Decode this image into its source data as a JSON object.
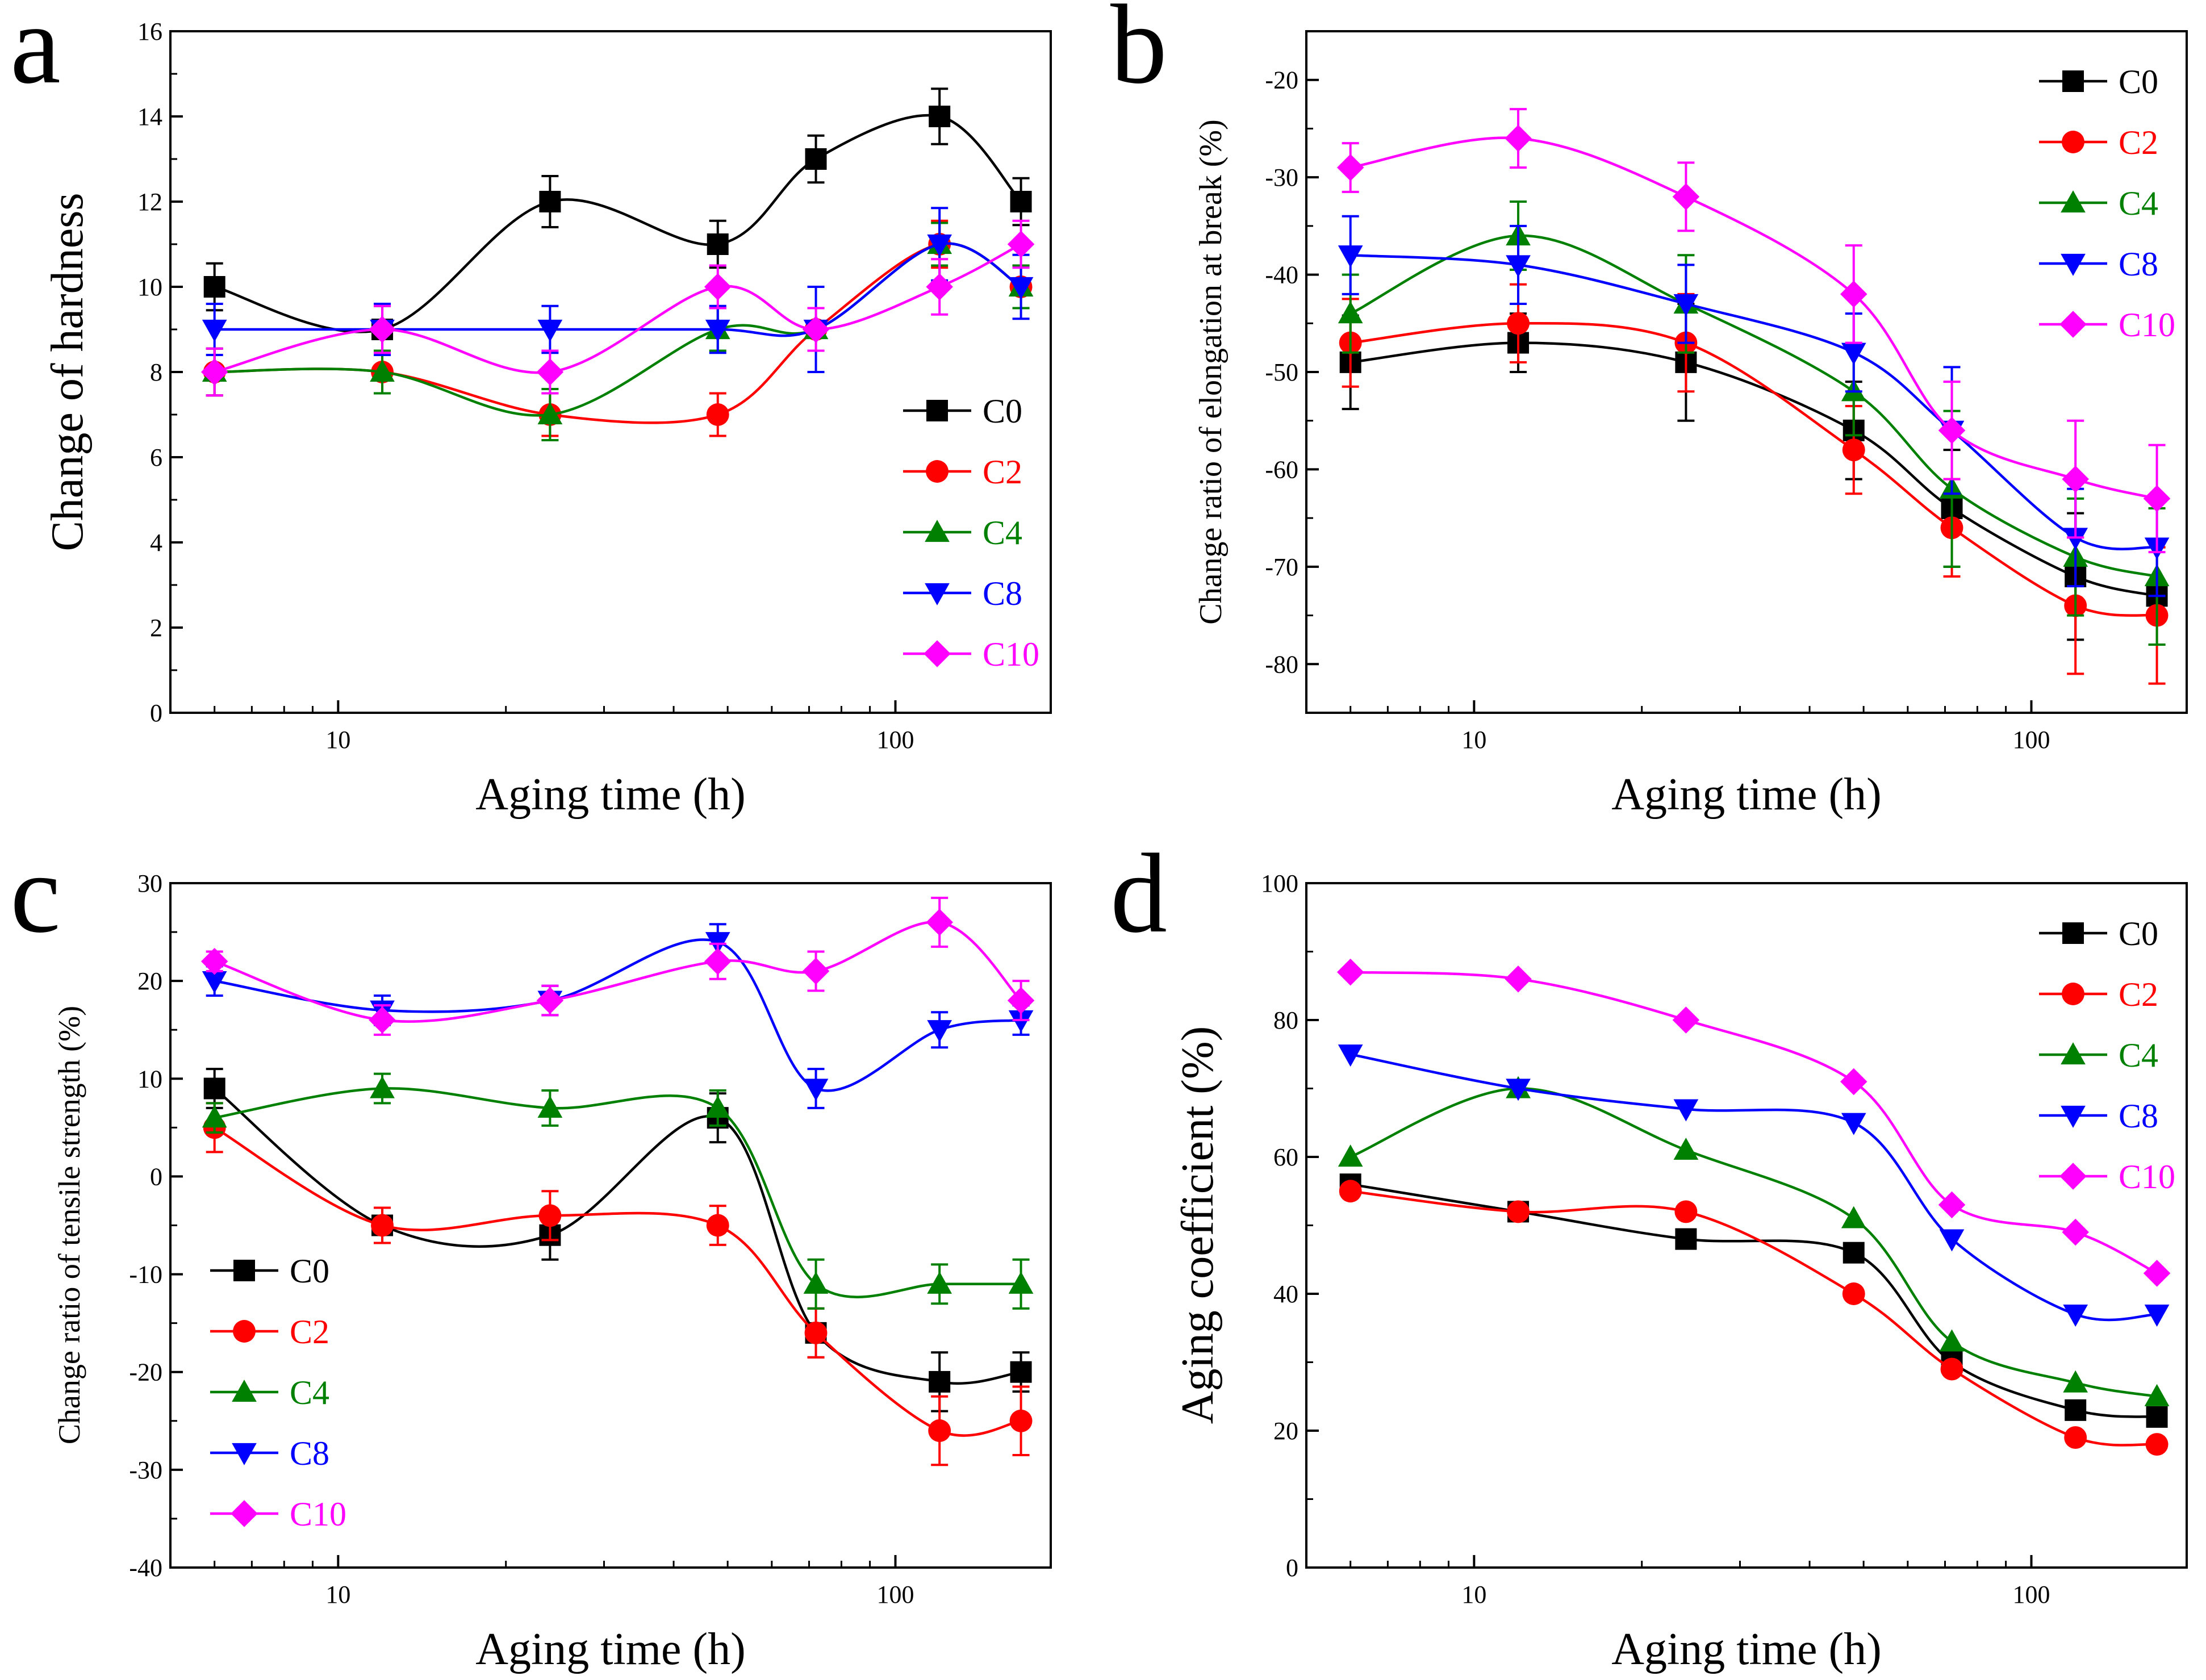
{
  "figure": {
    "x_values": [
      6,
      12,
      24,
      48,
      72,
      120,
      168
    ]
  },
  "series_style": {
    "C0": {
      "color": "#000000",
      "marker": "square"
    },
    "C2": {
      "color": "#ff0000",
      "marker": "circle"
    },
    "C4": {
      "color": "#008000",
      "marker": "triangle-up"
    },
    "C8": {
      "color": "#0000ff",
      "marker": "triangle-down"
    },
    "C10": {
      "color": "#ff00ff",
      "marker": "diamond"
    }
  },
  "chart_data": [
    {
      "panel": "a",
      "type": "line",
      "xscale": "log",
      "xlim": [
        5,
        190
      ],
      "ylim": [
        0,
        16
      ],
      "xticks": [
        10,
        100
      ],
      "xtick_labels": [
        "10",
        "100"
      ],
      "yticks": [
        0,
        2,
        4,
        6,
        8,
        10,
        12,
        14,
        16
      ],
      "ytick_labels": [
        "0",
        "2",
        "4",
        "6",
        "8",
        "10",
        "12",
        "14",
        "16"
      ],
      "xlabel": "Aging time (h)",
      "ylabel": "Change of hardness",
      "legend_position": "lower-right",
      "series": [
        {
          "name": "C0",
          "values": [
            10,
            9,
            12,
            11,
            13,
            14,
            12
          ],
          "errors": [
            0.55,
            0.55,
            0.6,
            0.55,
            0.55,
            0.65,
            0.55
          ]
        },
        {
          "name": "C2",
          "values": [
            8,
            8,
            7,
            7,
            9,
            11,
            10
          ],
          "errors": [
            0.55,
            0.5,
            0.5,
            0.5,
            0.5,
            0.55,
            0.5
          ]
        },
        {
          "name": "C4",
          "values": [
            8,
            8,
            7,
            9,
            9,
            11,
            10
          ],
          "errors": [
            0.55,
            0.5,
            0.6,
            0.5,
            0.5,
            0.5,
            0.5
          ]
        },
        {
          "name": "C8",
          "values": [
            9,
            9,
            9,
            9,
            9,
            11,
            10
          ],
          "errors": [
            0.6,
            0.6,
            0.55,
            0.55,
            1.0,
            0.85,
            0.75
          ]
        },
        {
          "name": "C10",
          "values": [
            8,
            9,
            8,
            10,
            9,
            10,
            11
          ],
          "errors": [
            0.55,
            0.55,
            0.5,
            0.5,
            0.5,
            0.65,
            0.55
          ]
        }
      ]
    },
    {
      "panel": "b",
      "type": "line",
      "xscale": "log",
      "xlim": [
        5,
        190
      ],
      "ylim": [
        -85,
        -15
      ],
      "xticks": [
        10,
        100
      ],
      "xtick_labels": [
        "10",
        "100"
      ],
      "yticks": [
        -80,
        -70,
        -60,
        -50,
        -40,
        -30,
        -20
      ],
      "ytick_labels": [
        "-80",
        "-70",
        "-60",
        "-50",
        "-40",
        "-30",
        "-20"
      ],
      "xlabel": "Aging time (h)",
      "ylabel": "Change ratio of elongation at break (%)",
      "legend_position": "top-right",
      "series": [
        {
          "name": "C0",
          "values": [
            -49,
            -47,
            -49,
            -56,
            -64,
            -71,
            -73
          ],
          "errors": [
            4.8,
            3.0,
            6.0,
            5.0,
            6.0,
            6.5,
            5.0
          ]
        },
        {
          "name": "C2",
          "values": [
            -47,
            -45,
            -47,
            -58,
            -66,
            -74,
            -75
          ],
          "errors": [
            4.5,
            4.0,
            5.0,
            4.5,
            5.0,
            7.0,
            7.0
          ]
        },
        {
          "name": "C4",
          "values": [
            -44,
            -36,
            -43,
            -52,
            -62,
            -69,
            -71
          ],
          "errors": [
            4.0,
            3.5,
            5.0,
            4.5,
            8.0,
            6.0,
            7.0
          ]
        },
        {
          "name": "C8",
          "values": [
            -38,
            -39,
            -43,
            -48,
            -56,
            -67,
            -68
          ],
          "errors": [
            4.0,
            4.0,
            4.0,
            4.0,
            6.5,
            5.0,
            5.0
          ]
        },
        {
          "name": "C10",
          "values": [
            -29,
            -26,
            -32,
            -42,
            -56,
            -61,
            -63
          ],
          "errors": [
            2.5,
            3.0,
            3.5,
            5.0,
            5.0,
            6.0,
            5.5
          ]
        }
      ]
    },
    {
      "panel": "c",
      "type": "line",
      "xscale": "log",
      "xlim": [
        5,
        190
      ],
      "ylim": [
        -40,
        30
      ],
      "xticks": [
        10,
        100
      ],
      "xtick_labels": [
        "10",
        "100"
      ],
      "yticks": [
        -40,
        -30,
        -20,
        -10,
        0,
        10,
        20,
        30
      ],
      "ytick_labels": [
        "-40",
        "-30",
        "-20",
        "-10",
        "0",
        "10",
        "20",
        "30"
      ],
      "xlabel": "Aging time (h)",
      "ylabel": "Change ratio of tensile strength (%)",
      "legend_position": "lower-left",
      "series": [
        {
          "name": "C0",
          "values": [
            9,
            -5,
            -6,
            6,
            -16,
            -21,
            -20
          ],
          "errors": [
            2.0,
            1.8,
            2.5,
            2.5,
            2.5,
            3.0,
            2.0
          ]
        },
        {
          "name": "C2",
          "values": [
            5,
            -5,
            -4,
            -5,
            -16,
            -26,
            -25
          ],
          "errors": [
            2.5,
            1.8,
            2.5,
            2.0,
            2.5,
            3.5,
            3.5
          ]
        },
        {
          "name": "C4",
          "values": [
            6,
            9,
            7,
            7,
            -11,
            -11,
            -11
          ],
          "errors": [
            1.5,
            1.5,
            1.8,
            1.8,
            2.5,
            2.0,
            2.5
          ]
        },
        {
          "name": "C8",
          "values": [
            20,
            17,
            18,
            24,
            9,
            15,
            16
          ],
          "errors": [
            1.5,
            1.5,
            1.5,
            1.8,
            2.0,
            1.8,
            1.5
          ]
        },
        {
          "name": "C10",
          "values": [
            22,
            16,
            18,
            22,
            21,
            26,
            18
          ],
          "errors": [
            1.0,
            1.5,
            1.5,
            1.8,
            2.0,
            2.5,
            2.0
          ]
        }
      ]
    },
    {
      "panel": "d",
      "type": "line",
      "xscale": "log",
      "xlim": [
        5,
        190
      ],
      "ylim": [
        0,
        100
      ],
      "xticks": [
        10,
        100
      ],
      "xtick_labels": [
        "10",
        "100"
      ],
      "yticks": [
        0,
        20,
        40,
        60,
        80,
        100
      ],
      "ytick_labels": [
        "0",
        "20",
        "40",
        "60",
        "80",
        "100"
      ],
      "xlabel": "Aging time (h)",
      "ylabel": "Aging coefficient (%)",
      "legend_position": "top-right",
      "series": [
        {
          "name": "C0",
          "values": [
            56,
            52,
            48,
            46,
            30,
            23,
            22
          ]
        },
        {
          "name": "C2",
          "values": [
            55,
            52,
            52,
            40,
            29,
            19,
            18
          ]
        },
        {
          "name": "C4",
          "values": [
            60,
            70,
            61,
            51,
            33,
            27,
            25
          ]
        },
        {
          "name": "C8",
          "values": [
            75,
            70,
            67,
            65,
            48,
            37,
            37
          ]
        },
        {
          "name": "C10",
          "values": [
            87,
            86,
            80,
            71,
            53,
            49,
            43
          ]
        }
      ]
    }
  ]
}
